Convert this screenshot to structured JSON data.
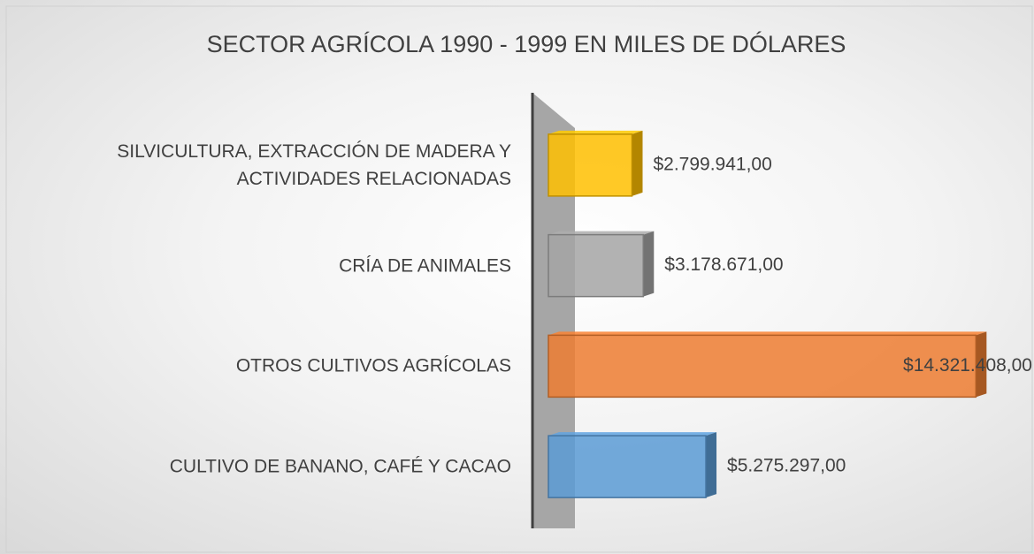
{
  "chart_data": {
    "type": "bar3d",
    "orientation": "horizontal",
    "title": "SECTOR AGRÍCOLA 1990 - 1999 EN MILES DE DÓLARES",
    "categories": [
      "SILVICULTURA, EXTRACCIÓN DE MADERA Y ACTIVIDADES RELACIONADAS",
      "CRÍA DE ANIMALES",
      "OTROS CULTIVOS AGRÍCOLAS",
      "CULTIVO DE BANANO, CAFÉ Y CACAO"
    ],
    "values": [
      2799941,
      3178671,
      14321408,
      5275297
    ],
    "value_labels": [
      "$2.799.941,00",
      "$3.178.671,00",
      "$14.321.408,00",
      "$5.275.297,00"
    ],
    "colors": [
      "#ffc000",
      "#a5a5a5",
      "#ed7d31",
      "#5b9bd5"
    ],
    "xlim": [
      0,
      16000000
    ]
  }
}
